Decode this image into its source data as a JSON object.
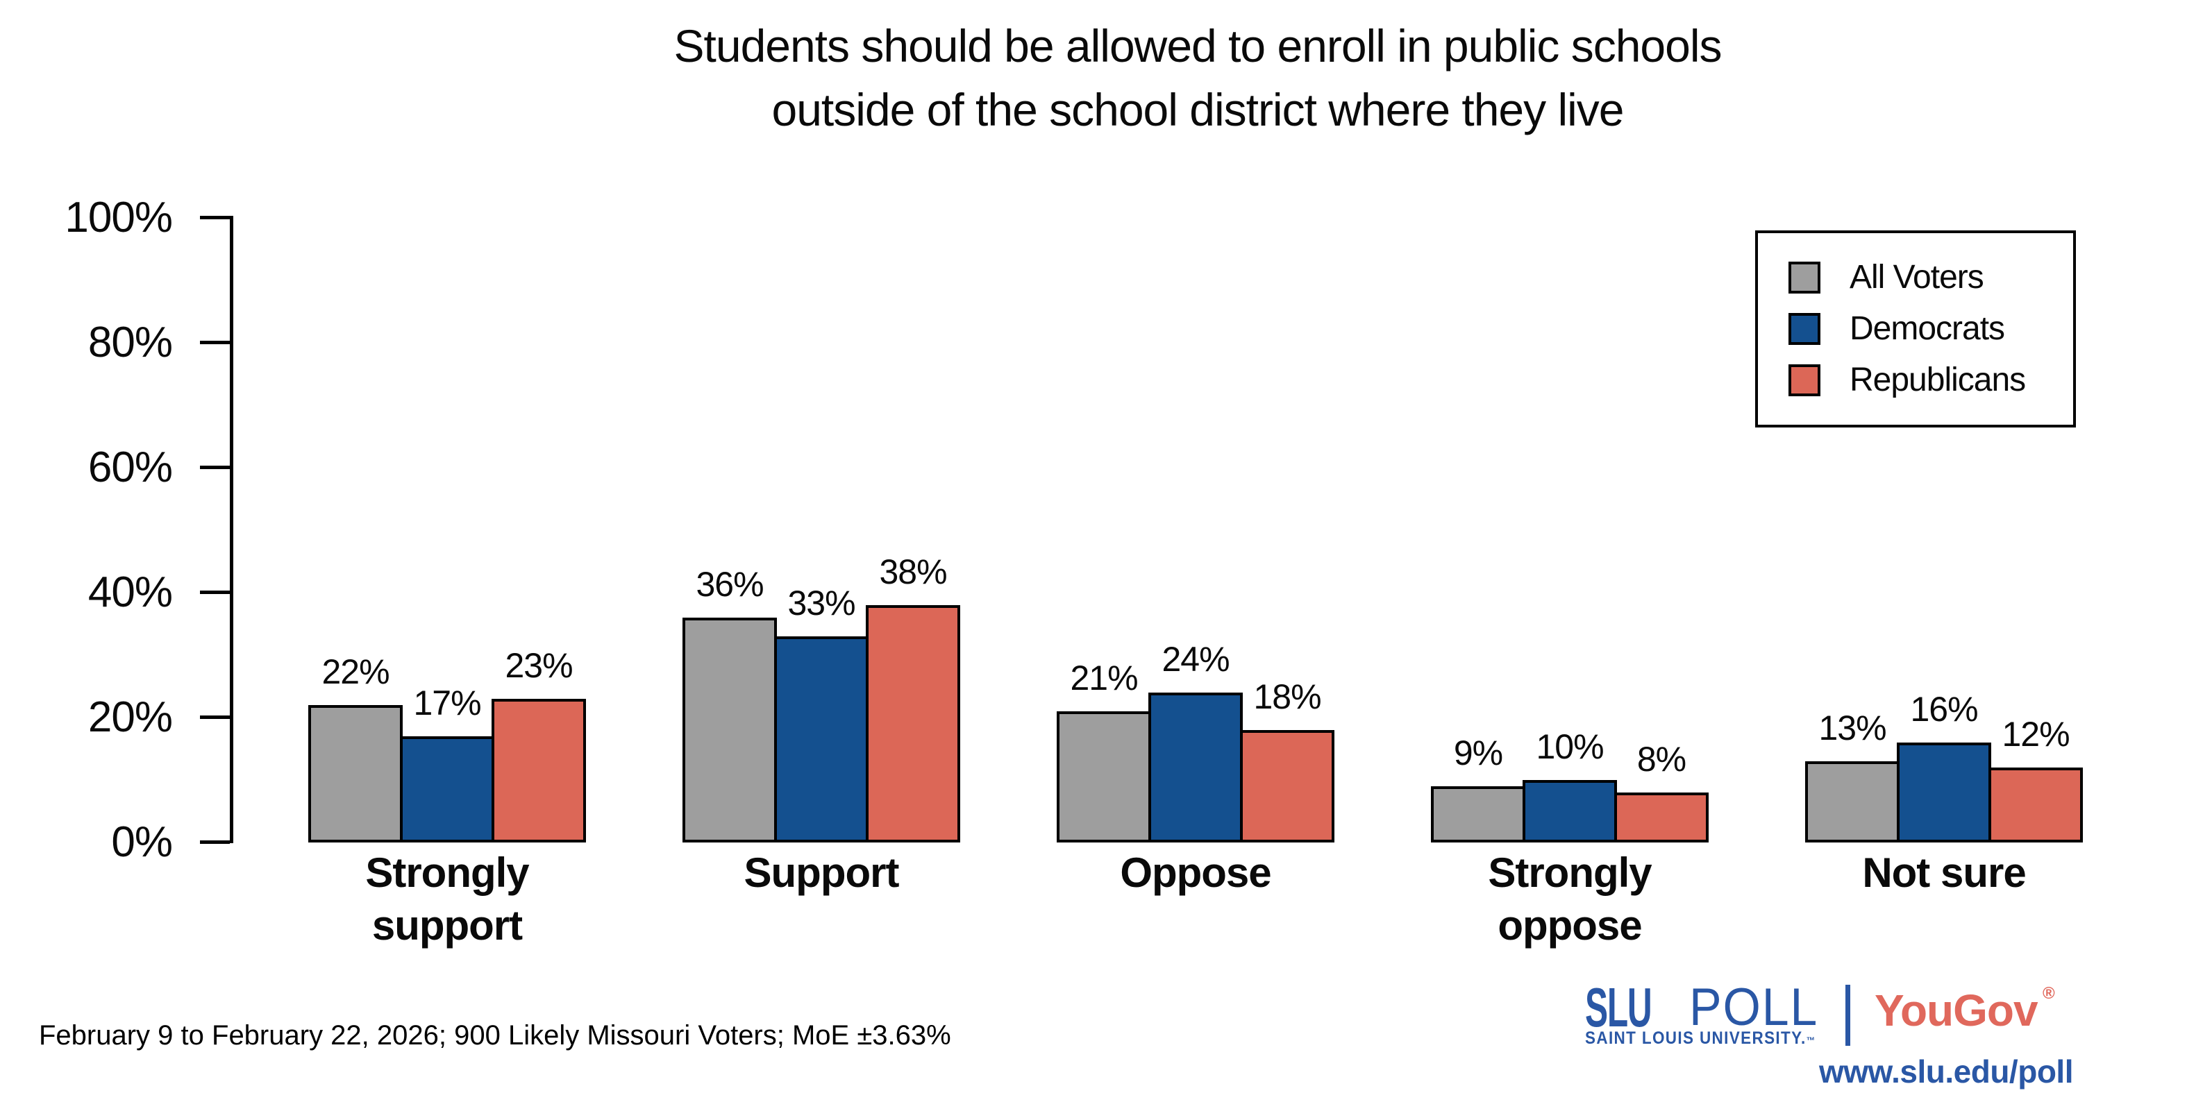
{
  "title": {
    "line1": "Students should be allowed to enroll in public schools",
    "line2": "outside of the school district where they live"
  },
  "chart_data": {
    "type": "bar",
    "title": "Students should be allowed to enroll in public schools outside of the school district where they live",
    "categories": [
      "Strongly support",
      "Support",
      "Oppose",
      "Strongly oppose",
      "Not sure"
    ],
    "category_label_lines": [
      [
        "Strongly",
        "support"
      ],
      [
        "Support"
      ],
      [
        "Oppose"
      ],
      [
        "Strongly",
        "oppose"
      ],
      [
        "Not sure"
      ]
    ],
    "series": [
      {
        "name": "All Voters",
        "color": "#9e9e9e",
        "values": [
          22,
          36,
          21,
          9,
          13
        ]
      },
      {
        "name": "Democrats",
        "color": "#14508f",
        "values": [
          17,
          33,
          24,
          10,
          16
        ]
      },
      {
        "name": "Republicans",
        "color": "#dc6757",
        "values": [
          23,
          38,
          18,
          8,
          12
        ]
      }
    ],
    "value_suffix": "%",
    "y_axis": {
      "ticks": [
        "0%",
        "20%",
        "40%",
        "60%",
        "80%",
        "100%"
      ],
      "values": [
        0,
        20,
        40,
        60,
        80,
        100
      ]
    },
    "ylim": [
      0,
      100
    ],
    "grid": false,
    "legend_position": "top-right",
    "bar_outline_color": "#000000"
  },
  "footnote": "February 9 to February 22, 2026; 900 Likely Missouri Voters; MoE ±3.63%",
  "branding": {
    "slu_wordmark": "SLU",
    "poll_wordmark": "POLL",
    "university": "SAINT LOUIS UNIVERSITY.",
    "university_tm": "™",
    "yougov": "YouGov",
    "registered_mark": "®",
    "url": "www.slu.edu/poll",
    "slu_blue": "#2a57a5",
    "yougov_red": "#e0685c"
  }
}
